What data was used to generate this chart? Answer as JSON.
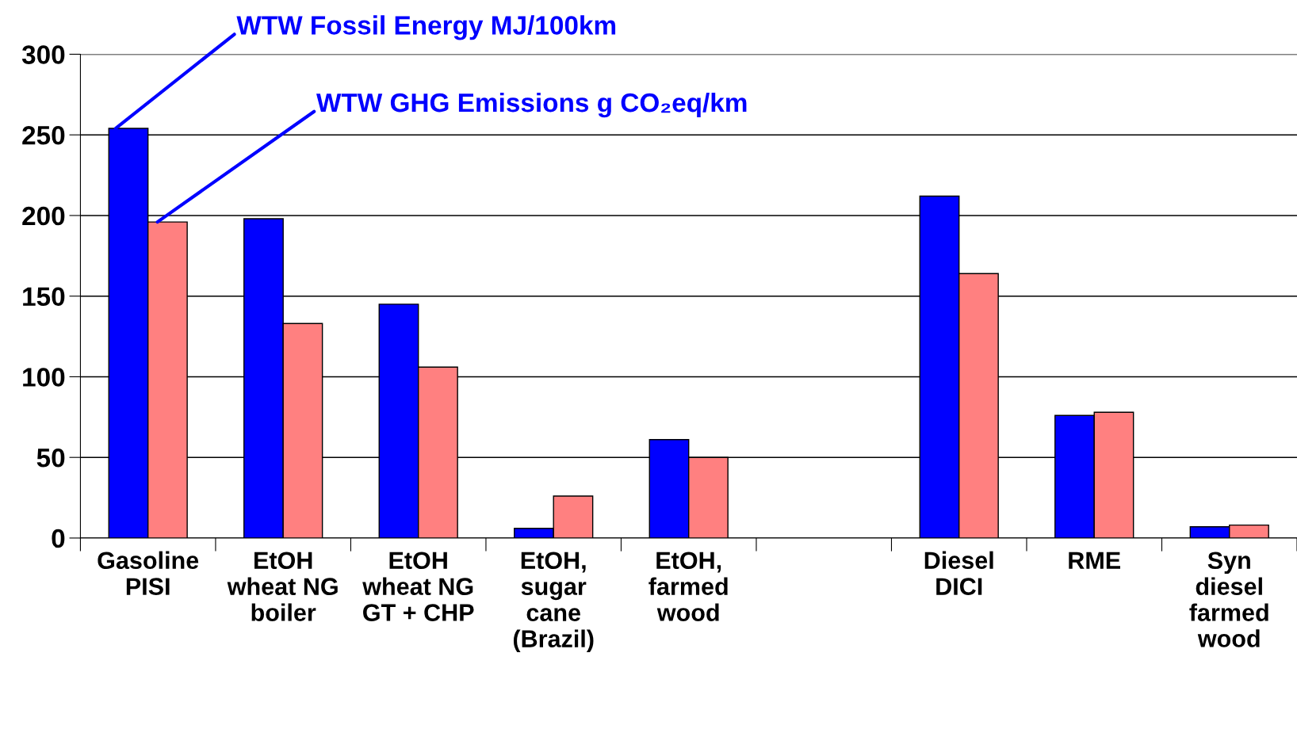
{
  "chart_data": {
    "type": "bar",
    "categories": [
      "Gasoline\nPISI",
      "EtOH\nwheat NG\nboiler",
      "EtOH\nwheat NG\nGT + CHP",
      "EtOH,\nsugar\ncane\n(Brazil)",
      "EtOH,\nfarmed\nwood",
      null,
      "Diesel\nDICI",
      "RME",
      "Syn\ndiesel\nfarmed\nwood"
    ],
    "series": [
      {
        "name": "WTW Fossil Energy MJ/100km",
        "color": "#0000ff",
        "values": [
          254,
          198,
          145,
          6,
          61,
          null,
          212,
          76,
          7
        ]
      },
      {
        "name": "WTW GHG Emissions g CO₂eq/km",
        "color": "#ff8080",
        "values": [
          196,
          133,
          106,
          26,
          50,
          null,
          164,
          78,
          8
        ]
      }
    ],
    "ylim": [
      0,
      300
    ],
    "yticks": [
      0,
      50,
      100,
      150,
      200,
      250,
      300
    ],
    "grid": "y",
    "legend": false
  }
}
